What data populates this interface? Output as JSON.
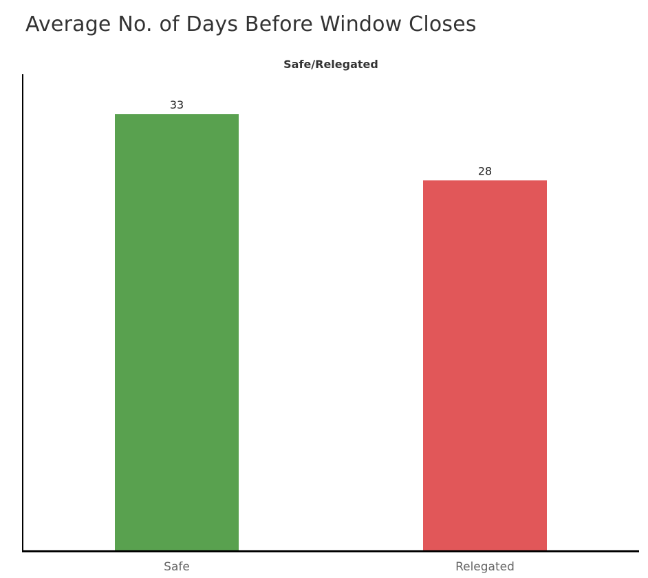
{
  "chart_data": {
    "type": "bar",
    "title": "Average No. of Days Before Window Closes",
    "header": "Safe/Relegated",
    "categories": [
      "Safe",
      "Relegated"
    ],
    "values": [
      33,
      28
    ],
    "data_labels": [
      "33",
      "28"
    ],
    "colors": [
      "#59a14f",
      "#e15759"
    ],
    "ylim": [
      0,
      36
    ],
    "grid": false,
    "legend": "none"
  }
}
